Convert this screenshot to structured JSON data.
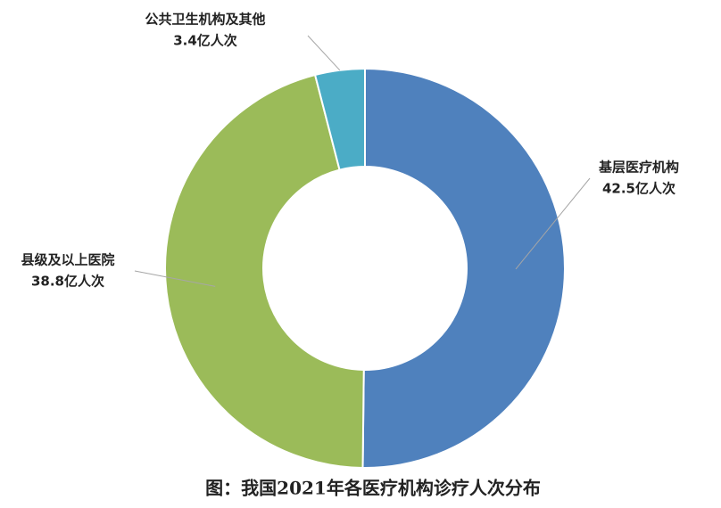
{
  "chart_data": {
    "type": "pie",
    "title": "图：我国2021年各医疗机构诊疗人次分布",
    "categories": [
      "基层医疗机构",
      "县级及以上医院",
      "公共卫生机构及其他"
    ],
    "values": [
      42.5,
      38.8,
      3.4
    ],
    "value_labels": [
      "42.5亿人次",
      "38.8亿人次",
      "3.4亿人次"
    ],
    "colors": [
      "#4f81bd",
      "#9bbb59",
      "#4bacc6"
    ]
  }
}
